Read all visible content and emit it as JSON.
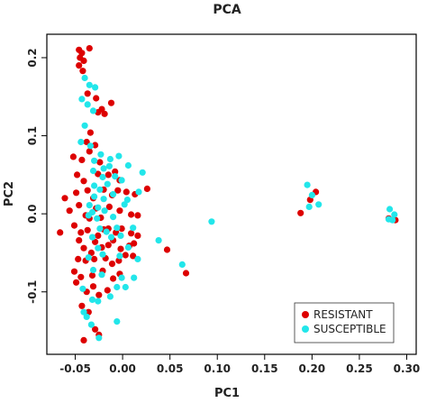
{
  "chart_data": {
    "type": "scatter",
    "title": "PCA",
    "xlabel": "PC1",
    "ylabel": "PC2",
    "xlim": [
      -0.08,
      0.31
    ],
    "ylim": [
      -0.18,
      0.23
    ],
    "xticks": [
      "-0.05",
      "0.00",
      "0.05",
      "0.10",
      "0.15",
      "0.20",
      "0.25",
      "0.30"
    ],
    "yticks": [
      "-0.1",
      "0.0",
      "0.1",
      "0.2"
    ],
    "legend_position": "bottom-right",
    "grid": false,
    "series": [
      {
        "name": "RESISTANT",
        "color": "#dd0000",
        "points": [
          [
            -0.046,
            0.21
          ],
          [
            -0.043,
            0.206
          ],
          [
            -0.035,
            0.212
          ],
          [
            -0.045,
            0.2
          ],
          [
            -0.041,
            0.196
          ],
          [
            -0.046,
            0.19
          ],
          [
            -0.042,
            0.183
          ],
          [
            -0.037,
            0.154
          ],
          [
            -0.028,
            0.148
          ],
          [
            -0.022,
            0.134
          ],
          [
            -0.012,
            0.142
          ],
          [
            -0.026,
            0.13
          ],
          [
            -0.019,
            0.128
          ],
          [
            -0.034,
            0.104
          ],
          [
            -0.038,
            0.092
          ],
          [
            -0.029,
            0.088
          ],
          [
            -0.035,
            0.08
          ],
          [
            -0.052,
            0.073
          ],
          [
            -0.043,
            0.069
          ],
          [
            -0.024,
            0.066
          ],
          [
            -0.048,
            0.05
          ],
          [
            -0.041,
            0.042
          ],
          [
            -0.026,
            0.051
          ],
          [
            -0.015,
            0.05
          ],
          [
            -0.008,
            0.054
          ],
          [
            -0.003,
            0.043
          ],
          [
            -0.061,
            0.02
          ],
          [
            -0.056,
            0.004
          ],
          [
            -0.049,
            0.027
          ],
          [
            -0.037,
            0.03
          ],
          [
            -0.031,
            0.02
          ],
          [
            -0.02,
            0.031
          ],
          [
            -0.011,
            0.024
          ],
          [
            -0.005,
            0.03
          ],
          [
            0.004,
            0.028
          ],
          [
            0.013,
            0.025
          ],
          [
            0.026,
            0.032
          ],
          [
            -0.046,
            0.011
          ],
          [
            -0.039,
            -0.002
          ],
          [
            -0.028,
            0.007
          ],
          [
            -0.023,
            -0.005
          ],
          [
            -0.014,
            0.009
          ],
          [
            -0.003,
            0.004
          ],
          [
            0.009,
            -0.001
          ],
          [
            0.016,
            -0.002
          ],
          [
            -0.035,
            -0.006
          ],
          [
            -0.066,
            -0.024
          ],
          [
            -0.051,
            -0.015
          ],
          [
            -0.044,
            -0.024
          ],
          [
            -0.037,
            -0.021
          ],
          [
            -0.026,
            -0.028
          ],
          [
            -0.02,
            -0.02
          ],
          [
            -0.015,
            -0.019
          ],
          [
            -0.007,
            -0.024
          ],
          [
            -0.001,
            -0.019
          ],
          [
            0.009,
            -0.025
          ],
          [
            0.016,
            -0.028
          ],
          [
            -0.046,
            -0.034
          ],
          [
            -0.041,
            -0.044
          ],
          [
            -0.029,
            -0.036
          ],
          [
            -0.022,
            -0.043
          ],
          [
            -0.015,
            -0.04
          ],
          [
            -0.01,
            -0.034
          ],
          [
            -0.002,
            -0.045
          ],
          [
            0.007,
            -0.041
          ],
          [
            0.012,
            -0.038
          ],
          [
            -0.033,
            -0.05
          ],
          [
            -0.047,
            -0.058
          ],
          [
            -0.039,
            -0.06
          ],
          [
            -0.03,
            -0.058
          ],
          [
            -0.018,
            -0.057
          ],
          [
            -0.011,
            -0.064
          ],
          [
            -0.004,
            -0.06
          ],
          [
            0.003,
            -0.053
          ],
          [
            0.011,
            -0.054
          ],
          [
            -0.051,
            -0.074
          ],
          [
            -0.044,
            -0.081
          ],
          [
            -0.032,
            -0.079
          ],
          [
            -0.021,
            -0.073
          ],
          [
            -0.01,
            -0.083
          ],
          [
            -0.003,
            -0.077
          ],
          [
            -0.049,
            -0.088
          ],
          [
            -0.038,
            -0.1
          ],
          [
            -0.031,
            -0.093
          ],
          [
            -0.025,
            -0.104
          ],
          [
            -0.016,
            -0.098
          ],
          [
            -0.043,
            -0.118
          ],
          [
            -0.036,
            -0.126
          ],
          [
            -0.029,
            -0.148
          ],
          [
            -0.041,
            -0.162
          ],
          [
            -0.025,
            -0.155
          ],
          [
            0.047,
            -0.046
          ],
          [
            0.067,
            -0.076
          ],
          [
            0.188,
            0.001
          ],
          [
            0.198,
            0.018
          ],
          [
            0.204,
            0.028
          ],
          [
            0.281,
            -0.006
          ],
          [
            0.288,
            -0.008
          ]
        ]
      },
      {
        "name": "SUSCEPTIBLE",
        "color": "#22e6ea",
        "points": [
          [
            -0.04,
            0.174
          ],
          [
            -0.035,
            0.165
          ],
          [
            -0.029,
            0.162
          ],
          [
            -0.043,
            0.147
          ],
          [
            -0.037,
            0.14
          ],
          [
            -0.031,
            0.132
          ],
          [
            -0.04,
            0.113
          ],
          [
            -0.044,
            0.092
          ],
          [
            -0.034,
            0.087
          ],
          [
            -0.023,
            0.076
          ],
          [
            -0.03,
            0.068
          ],
          [
            -0.013,
            0.07
          ],
          [
            -0.004,
            0.074
          ],
          [
            0.006,
            0.062
          ],
          [
            -0.031,
            0.055
          ],
          [
            -0.02,
            0.058
          ],
          [
            -0.014,
            0.061
          ],
          [
            -0.008,
            0.048
          ],
          [
            -0.021,
            0.047
          ],
          [
            0.021,
            0.053
          ],
          [
            -0.001,
            0.043
          ],
          [
            -0.03,
            0.036
          ],
          [
            -0.024,
            0.031
          ],
          [
            -0.016,
            0.038
          ],
          [
            -0.01,
            0.025
          ],
          [
            0.017,
            0.028
          ],
          [
            -0.03,
            0.022
          ],
          [
            -0.02,
            0.019
          ],
          [
            0.005,
            0.018
          ],
          [
            -0.035,
            0.011
          ],
          [
            -0.032,
            0.002
          ],
          [
            -0.026,
            0.008
          ],
          [
            -0.019,
            0.004
          ],
          [
            -0.01,
            -0.004
          ],
          [
            -0.036,
            -0.002
          ],
          [
            -0.027,
            -0.006
          ],
          [
            0.002,
            0.012
          ],
          [
            -0.024,
            -0.019
          ],
          [
            -0.017,
            -0.023
          ],
          [
            -0.006,
            -0.018
          ],
          [
            -0.012,
            -0.03
          ],
          [
            -0.002,
            -0.028
          ],
          [
            0.011,
            -0.018
          ],
          [
            -0.032,
            -0.03
          ],
          [
            -0.036,
            -0.056
          ],
          [
            -0.026,
            -0.044
          ],
          [
            -0.021,
            -0.052
          ],
          [
            -0.003,
            -0.054
          ],
          [
            0.006,
            -0.043
          ],
          [
            0.016,
            -0.058
          ],
          [
            -0.031,
            -0.072
          ],
          [
            -0.022,
            -0.078
          ],
          [
            -0.001,
            -0.082
          ],
          [
            0.012,
            -0.082
          ],
          [
            -0.006,
            -0.094
          ],
          [
            0.003,
            -0.094
          ],
          [
            -0.042,
            -0.096
          ],
          [
            -0.032,
            -0.11
          ],
          [
            -0.026,
            -0.112
          ],
          [
            -0.013,
            -0.106
          ],
          [
            -0.041,
            -0.126
          ],
          [
            -0.038,
            -0.132
          ],
          [
            -0.033,
            -0.142
          ],
          [
            -0.006,
            -0.138
          ],
          [
            -0.025,
            -0.159
          ],
          [
            0.038,
            -0.034
          ],
          [
            0.063,
            -0.065
          ],
          [
            0.094,
            -0.01
          ],
          [
            0.195,
            0.037
          ],
          [
            0.2,
            0.024
          ],
          [
            0.207,
            0.012
          ],
          [
            0.197,
            0.009
          ],
          [
            0.282,
            0.006
          ],
          [
            0.287,
            -0.001
          ],
          [
            0.281,
            -0.007
          ],
          [
            0.285,
            -0.008
          ]
        ]
      }
    ]
  }
}
